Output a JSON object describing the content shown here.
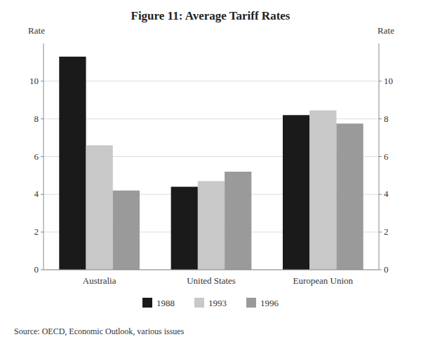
{
  "chart_data": {
    "type": "bar",
    "title": "Figure 11: Average Tariff Rates",
    "categories": [
      "Australia",
      "United States",
      "European Union"
    ],
    "series": [
      {
        "name": "1988",
        "color": "#1a1a1a",
        "values": [
          11.3,
          4.4,
          8.2
        ]
      },
      {
        "name": "1993",
        "color": "#c8c8c8",
        "values": [
          6.6,
          4.7,
          8.45
        ]
      },
      {
        "name": "1996",
        "color": "#9a9a9a",
        "values": [
          4.2,
          5.2,
          7.75
        ]
      }
    ],
    "ylabel": "Rate",
    "y2label": "Rate",
    "ylim": [
      0,
      12
    ],
    "yticks": [
      0,
      2,
      4,
      6,
      8,
      10
    ],
    "y2lim": [
      0,
      12
    ],
    "y2ticks": [
      0,
      2,
      4,
      6,
      8,
      10
    ],
    "grid": true,
    "legend": "bottom",
    "annotations": [
      "Source: OECD, Economic Outlook, various issues"
    ]
  }
}
